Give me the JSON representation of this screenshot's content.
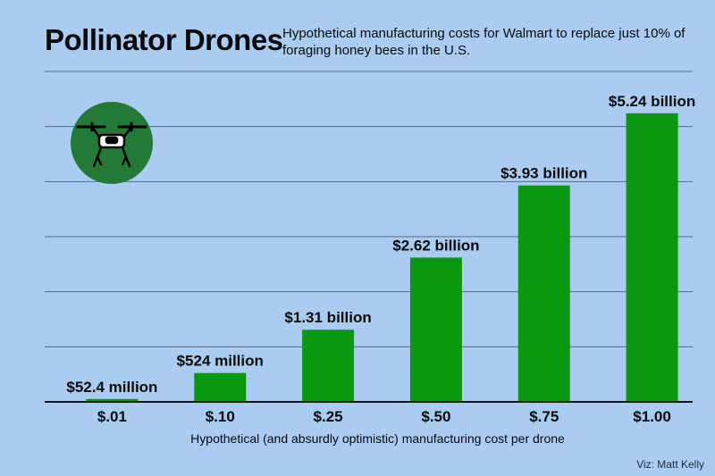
{
  "colors": {
    "background": "#a9ccf0",
    "bar": "#0c9710",
    "icon_circle": "#237a36",
    "gridline": "#5b6b80",
    "axis": "#111111"
  },
  "icon": {
    "name": "drone-icon"
  },
  "credit": "Viz: Matt Kelly",
  "chart_data": {
    "type": "bar",
    "title": "Pollinator Drones",
    "subtitle": "Hypothetical manufacturing costs for Walmart to replace just 10% of foraging honey bees in the U.S.",
    "xlabel": "Hypothetical (and absurdly optimistic) manufacturing cost per drone",
    "ylabel": "",
    "categories": [
      "$.01",
      "$.10",
      "$.25",
      "$.50",
      "$.75",
      "$1.00"
    ],
    "values": [
      0.0524,
      0.524,
      1.31,
      2.62,
      3.93,
      5.24
    ],
    "value_units": "billion USD",
    "data_labels": [
      "$52.4 million",
      "$524 million",
      "$1.31 billion",
      "$2.62 billion",
      "$3.93 billion",
      "$5.24 billion"
    ],
    "ylim": [
      0,
      6
    ],
    "yticks": [
      0,
      1,
      2,
      3,
      4,
      5,
      6
    ],
    "grid": true,
    "y_tick_labels_shown": false
  }
}
